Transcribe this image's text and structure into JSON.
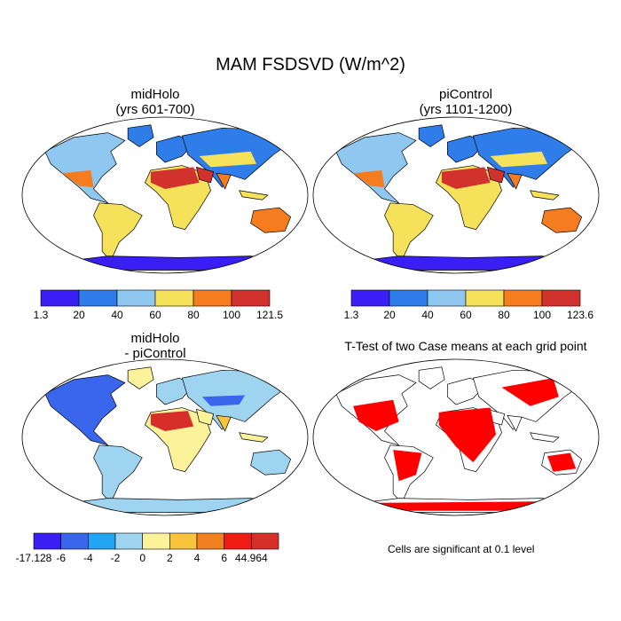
{
  "main_title": "MAM FSDSVD (W/m^2)",
  "panels": {
    "top_left": {
      "title_line1": "midHolo",
      "title_line2": "(yrs 601-700)"
    },
    "top_right": {
      "title_line1": "piControl",
      "title_line2": "(yrs 1101-1200)"
    },
    "bottom_left": {
      "title_line1": "midHolo",
      "title_line2": "- piControl"
    },
    "bottom_right": {
      "title": "T-Test of two Case means at each grid point",
      "note": "Cells are significant at 0.1 level"
    }
  },
  "colorbars": {
    "top_left": {
      "labels": [
        "1.3",
        "20",
        "40",
        "60",
        "80",
        "100",
        "121.5"
      ],
      "colors": [
        "#3a1ff5",
        "#2e7de8",
        "#8ec7ef",
        "#f6e15a",
        "#f57c1f",
        "#d1322d"
      ]
    },
    "top_right": {
      "labels": [
        "1.3",
        "20",
        "40",
        "60",
        "80",
        "100",
        "123.6"
      ],
      "colors": [
        "#3a1ff5",
        "#2e7de8",
        "#8ec7ef",
        "#f6e15a",
        "#f57c1f",
        "#d1322d"
      ]
    },
    "bottom_left": {
      "labels": [
        "-17.128",
        "-6",
        "-4",
        "-2",
        "0",
        "2",
        "4",
        "6",
        "44.964"
      ],
      "colors": [
        "#3a1ff5",
        "#3a66ee",
        "#22a6f4",
        "#9fd4f0",
        "#fbf29a",
        "#f8c43a",
        "#f2801e",
        "#f01c14",
        "#d62f2a"
      ]
    }
  },
  "ttest_color": "#ff0000",
  "land_colors": {
    "top_left": {
      "antarctica": "#3a1ff5",
      "north": "#2e7de8",
      "mid": "#f6e15a",
      "hot": "#d1322d",
      "warm": "#f57c1f",
      "cool": "#8ec7ef"
    },
    "bottom_left": {
      "antarctica": "#9fd4f0",
      "north": "#9fd4f0",
      "mid": "#fbf29a",
      "hot": "#d62f2a",
      "warm": "#f8c43a",
      "cool": "#3a66ee"
    }
  }
}
